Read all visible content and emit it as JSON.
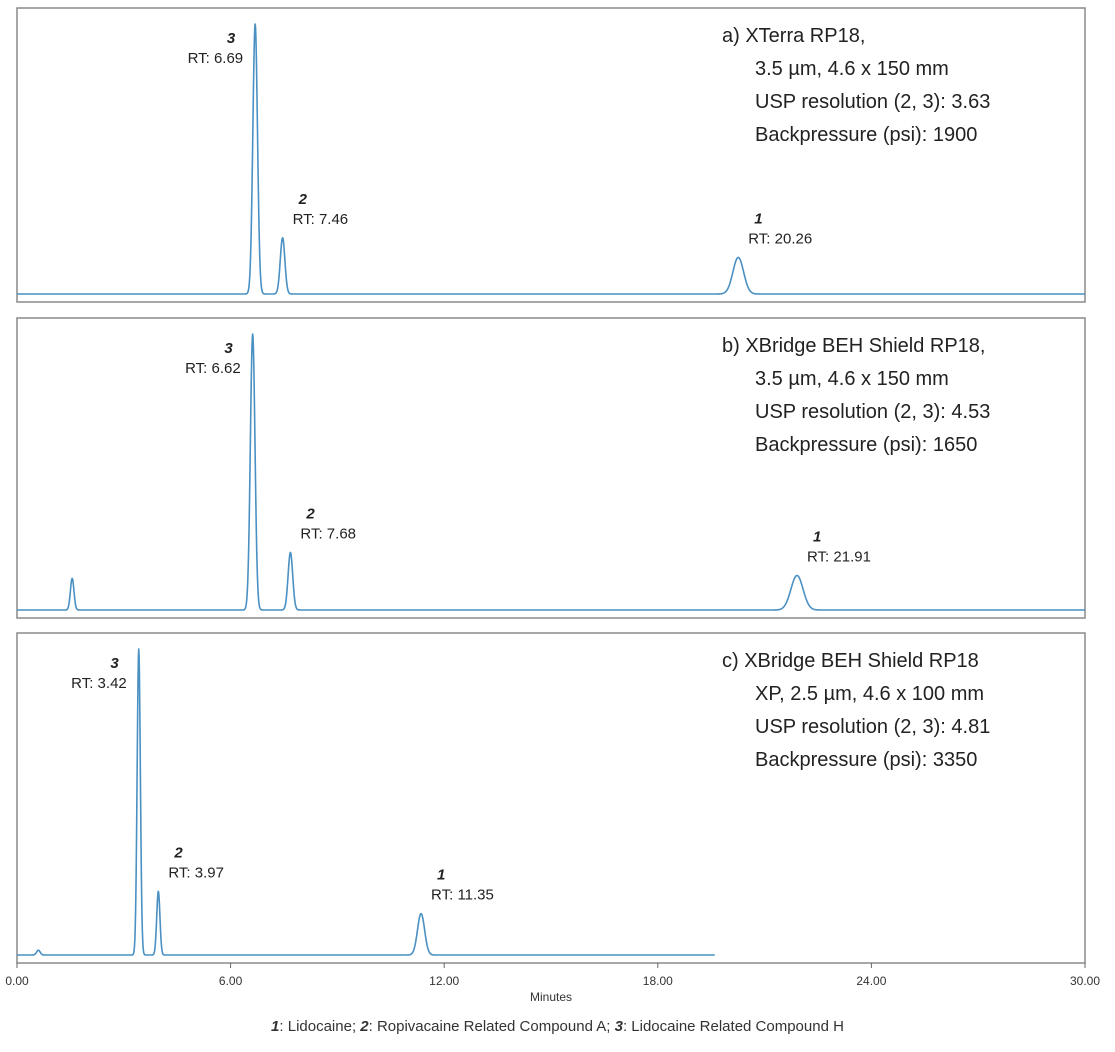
{
  "chart_data": {
    "type": "line",
    "xlabel": "Minutes",
    "xlim": [
      0,
      30
    ],
    "x_ticks": [
      "0.00",
      "6.00",
      "12.00",
      "18.00",
      "24.00",
      "30.00"
    ],
    "line_color": "#4a90c2",
    "panels": [
      {
        "id": "a",
        "info_lines": [
          "a) XTerra RP18,",
          "3.5 µm, 4.6 x 150 mm",
          "USP resolution (2, 3): 3.63",
          "Backpressure (psi): 1900"
        ],
        "x_end": 30,
        "peaks": [
          {
            "compound": "3",
            "rt_label": "RT: 6.69",
            "rt": 6.69,
            "height": 0.96,
            "width": 0.065
          },
          {
            "compound": "2",
            "rt_label": "RT: 7.46",
            "rt": 7.46,
            "height": 0.2,
            "width": 0.065
          },
          {
            "compound": "1",
            "rt_label": "RT: 20.26",
            "rt": 20.26,
            "height": 0.13,
            "width": 0.15
          }
        ],
        "extra_peaks": []
      },
      {
        "id": "b",
        "info_lines": [
          "b) XBridge BEH Shield RP18,",
          "3.5 µm, 4.6 x 150 mm",
          "USP resolution (2, 3): 4.53",
          "Backpressure (psi): 1650"
        ],
        "x_end": 30,
        "peaks": [
          {
            "compound": "3",
            "rt_label": "RT: 6.62",
            "rt": 6.62,
            "height": 0.96,
            "width": 0.065
          },
          {
            "compound": "2",
            "rt_label": "RT: 7.68",
            "rt": 7.68,
            "height": 0.2,
            "width": 0.065
          },
          {
            "compound": "1",
            "rt_label": "RT: 21.91",
            "rt": 21.91,
            "height": 0.12,
            "width": 0.17
          }
        ],
        "extra_peaks": [
          {
            "rt": 1.55,
            "height": 0.11,
            "width": 0.05
          }
        ]
      },
      {
        "id": "c",
        "info_lines": [
          "c) XBridge BEH Shield RP18",
          "XP, 2.5 µm, 4.6 x 100 mm",
          "USP resolution (2, 3): 4.81",
          "Backpressure (psi): 3350"
        ],
        "x_end": 19.6,
        "peaks": [
          {
            "compound": "3",
            "rt_label": "RT: 3.42",
            "rt": 3.42,
            "height": 0.96,
            "width": 0.045
          },
          {
            "compound": "2",
            "rt_label": "RT: 3.97",
            "rt": 3.97,
            "height": 0.2,
            "width": 0.045
          },
          {
            "compound": "1",
            "rt_label": "RT: 11.35",
            "rt": 11.35,
            "height": 0.13,
            "width": 0.1
          }
        ],
        "extra_peaks": [
          {
            "rt": 0.6,
            "height": 0.015,
            "width": 0.05
          }
        ]
      }
    ]
  },
  "legend": {
    "n1": "1",
    "t1": ": Lidocaine; ",
    "n2": "2",
    "t2": ": Ropivacaine Related Compound A; ",
    "n3": "3",
    "t3": ": Lidocaine Related Compound H"
  }
}
